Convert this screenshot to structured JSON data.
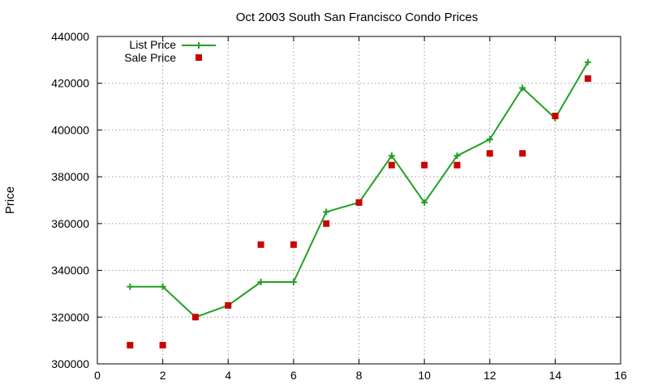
{
  "chart_data": {
    "type": "line",
    "title": "Oct 2003 South San Francisco Condo Prices",
    "xlabel": "",
    "ylabel": "Price",
    "xlim": [
      0,
      16
    ],
    "ylim": [
      300000,
      440000
    ],
    "xticks": [
      0,
      2,
      4,
      6,
      8,
      10,
      12,
      14,
      16
    ],
    "yticks": [
      300000,
      320000,
      340000,
      360000,
      380000,
      400000,
      420000,
      440000
    ],
    "grid": true,
    "legend_position": "top-left",
    "series": [
      {
        "name": "List Price",
        "style": "line-with-plus-markers",
        "color": "#22a022",
        "x": [
          1,
          2,
          3,
          4,
          5,
          6,
          7,
          8,
          9,
          10,
          11,
          12,
          13,
          14,
          15
        ],
        "y": [
          333000,
          333000,
          320000,
          325000,
          335000,
          335000,
          365000,
          369000,
          389000,
          369000,
          389000,
          396000,
          418000,
          405000,
          429000
        ]
      },
      {
        "name": "Sale Price",
        "style": "square-markers",
        "color": "#cc0000",
        "x": [
          1,
          2,
          3,
          4,
          5,
          6,
          7,
          8,
          9,
          10,
          11,
          12,
          13,
          14,
          15
        ],
        "y": [
          308000,
          308000,
          320000,
          325000,
          351000,
          351000,
          360000,
          369000,
          385000,
          385000,
          385000,
          390000,
          390000,
          406000,
          422000
        ]
      }
    ]
  }
}
